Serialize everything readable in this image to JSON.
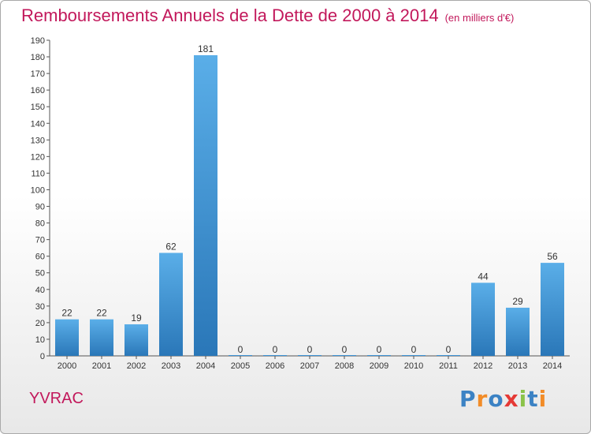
{
  "chart_data": {
    "type": "bar",
    "title": "Remboursements Annuels de la Dette de 2000 à 2014",
    "unit": "(en milliers d'€)",
    "categories": [
      "2000",
      "2001",
      "2002",
      "2003",
      "2004",
      "2005",
      "2006",
      "2007",
      "2008",
      "2009",
      "2010",
      "2011",
      "2012",
      "2013",
      "2014"
    ],
    "values": [
      22,
      22,
      19,
      62,
      181,
      0,
      0,
      0,
      0,
      0,
      0,
      0,
      44,
      29,
      56
    ],
    "ylim": [
      0,
      190
    ],
    "ytick_step": 10,
    "grid": false,
    "legend": "none",
    "bar_color": "#3d93d6",
    "bar_color_dark": "#2a77b8"
  },
  "location": "YVRAC",
  "brand": {
    "letters": [
      "P",
      "r",
      "o",
      "x",
      "i",
      "t",
      "i"
    ],
    "colors": [
      "#3b82c4",
      "#f28c28",
      "#3b82c4",
      "#e53935",
      "#8bc34a",
      "#3b82c4",
      "#f28c28"
    ]
  }
}
